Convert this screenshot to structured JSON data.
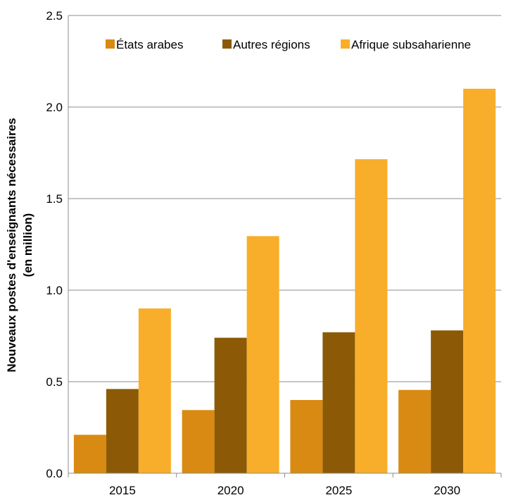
{
  "chart_data": {
    "type": "bar",
    "categories": [
      "2015",
      "2020",
      "2025",
      "2030"
    ],
    "series": [
      {
        "name": "États arabes",
        "values": [
          0.21,
          0.345,
          0.4,
          0.455
        ],
        "color": "#D98A12"
      },
      {
        "name": "Autres régions",
        "values": [
          0.46,
          0.74,
          0.77,
          0.78
        ],
        "color": "#8C5A06"
      },
      {
        "name": "Afrique subsaharienne",
        "values": [
          0.9,
          1.295,
          1.715,
          2.1
        ],
        "color": "#F8AE2A"
      }
    ],
    "title": "",
    "xlabel": "",
    "ylabel_line1": "Nouveaux postes d'enseignants nécessaires",
    "ylabel_line2": "(en million)",
    "ylim": [
      0,
      2.5
    ],
    "yticks": [
      "0.0",
      "0.5",
      "1.0",
      "1.5",
      "2.0",
      "2.5"
    ],
    "grid": true,
    "legend_position": "top"
  }
}
